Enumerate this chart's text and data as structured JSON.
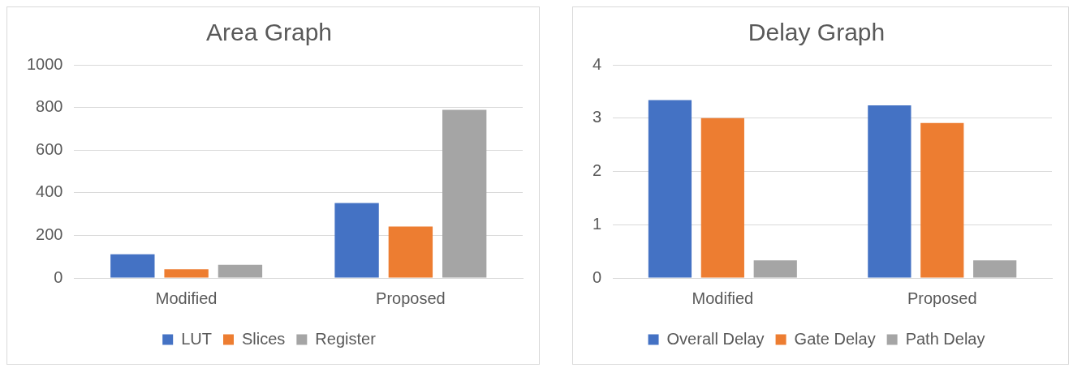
{
  "chart_data": [
    {
      "type": "bar",
      "title": "Area Graph",
      "categories": [
        "Modified",
        "Proposed"
      ],
      "series": [
        {
          "name": "LUT",
          "color": "#4472c4",
          "values": [
            111,
            352
          ]
        },
        {
          "name": "Slices",
          "color": "#ed7d31",
          "values": [
            41,
            241
          ]
        },
        {
          "name": "Register",
          "color": "#a5a5a5",
          "values": [
            62,
            789
          ]
        }
      ],
      "ylim": [
        0,
        1000
      ],
      "yticks": [
        0,
        200,
        400,
        600,
        800,
        1000
      ],
      "grid": "y",
      "legend": "bottom"
    },
    {
      "type": "bar",
      "title": "Delay Graph",
      "categories": [
        "Modified",
        "Proposed"
      ],
      "series": [
        {
          "name": "Overall Delay",
          "color": "#4472c4",
          "values": [
            3.34,
            3.24
          ]
        },
        {
          "name": "Gate Delay",
          "color": "#ed7d31",
          "values": [
            3.0,
            2.91
          ]
        },
        {
          "name": "Path Delay",
          "color": "#a5a5a5",
          "values": [
            0.33,
            0.33
          ]
        }
      ],
      "ylim": [
        0,
        4
      ],
      "yticks": [
        0,
        1,
        2,
        3,
        4
      ],
      "grid": "y",
      "legend": "bottom"
    }
  ]
}
